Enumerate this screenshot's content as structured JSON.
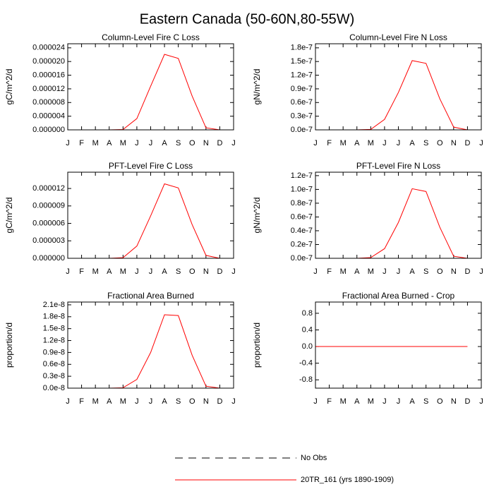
{
  "title": "Eastern Canada (50-60N,80-55W)",
  "legend": [
    {
      "label": "No Obs",
      "color": "#000000",
      "dash": true
    },
    {
      "label": "20TR_161 (yrs 1890-1909)",
      "color": "#ff0000",
      "dash": false
    }
  ],
  "chart_data": [
    {
      "type": "line",
      "title": "Column-Level Fire C Loss",
      "y_label": "gC/m^2/d",
      "color": "#ff0000",
      "categories": [
        "J",
        "F",
        "M",
        "A",
        "M",
        "J",
        "J",
        "A",
        "S",
        "O",
        "N",
        "D",
        "J"
      ],
      "values": [
        0,
        0,
        0,
        0,
        1e-07,
        3.3e-06,
        1.28e-05,
        2.21e-05,
        2.09e-05,
        9.9e-06,
        6e-07,
        0,
        null
      ],
      "ylim": [
        0,
        2.52e-05
      ],
      "yticks": [
        {
          "value": 0,
          "label": "0.000000"
        },
        {
          "value": 4e-06,
          "label": "0.000004"
        },
        {
          "value": 8e-06,
          "label": "0.000008"
        },
        {
          "value": 1.2e-05,
          "label": "0.000012"
        },
        {
          "value": 1.6e-05,
          "label": "0.000016"
        },
        {
          "value": 2e-05,
          "label": "0.000020"
        },
        {
          "value": 2.4e-05,
          "label": "0.000024"
        }
      ]
    },
    {
      "type": "line",
      "title": "Column-Level Fire N Loss",
      "y_label": "gN/m^2/d",
      "color": "#ff0000",
      "categories": [
        "J",
        "F",
        "M",
        "A",
        "M",
        "J",
        "J",
        "A",
        "S",
        "O",
        "N",
        "D",
        "J"
      ],
      "values": [
        0,
        0,
        0,
        0,
        1e-09,
        2.3e-08,
        8.2e-08,
        1.52e-07,
        1.46e-07,
        6.8e-08,
        6e-09,
        0,
        null
      ],
      "ylim": [
        0,
        1.89e-07
      ],
      "yticks": [
        {
          "value": 0,
          "label": "0.0e-7"
        },
        {
          "value": 3e-08,
          "label": "0.3e-7"
        },
        {
          "value": 6e-08,
          "label": "0.6e-7"
        },
        {
          "value": 9e-08,
          "label": "0.9e-7"
        },
        {
          "value": 1.2e-07,
          "label": "1.2e-7"
        },
        {
          "value": 1.5e-07,
          "label": "1.5e-7"
        },
        {
          "value": 1.8e-07,
          "label": "1.8e-7"
        }
      ]
    },
    {
      "type": "line",
      "title": "PFT-Level Fire C Loss",
      "y_label": "gC/m^2/d",
      "color": "#ff0000",
      "categories": [
        "J",
        "F",
        "M",
        "A",
        "M",
        "J",
        "J",
        "A",
        "S",
        "O",
        "N",
        "D",
        "J"
      ],
      "values": [
        0,
        0,
        0,
        0,
        1e-07,
        2.1e-06,
        7.3e-06,
        1.28e-05,
        1.21e-05,
        5.8e-06,
        5e-07,
        0,
        null
      ],
      "ylim": [
        0,
        1.48e-05
      ],
      "yticks": [
        {
          "value": 0,
          "label": "0.000000"
        },
        {
          "value": 3e-06,
          "label": "0.000003"
        },
        {
          "value": 6e-06,
          "label": "0.000006"
        },
        {
          "value": 9e-06,
          "label": "0.000009"
        },
        {
          "value": 1.2e-05,
          "label": "0.000012"
        }
      ]
    },
    {
      "type": "line",
      "title": "PFT-Level Fire N Loss",
      "y_label": "gN/m^2/d",
      "color": "#ff0000",
      "categories": [
        "J",
        "F",
        "M",
        "A",
        "M",
        "J",
        "J",
        "A",
        "S",
        "O",
        "N",
        "D",
        "J"
      ],
      "values": [
        0,
        0,
        0,
        0,
        1e-09,
        1.4e-08,
        5.2e-08,
        1.01e-07,
        9.7e-08,
        4.5e-08,
        3e-09,
        0,
        null
      ],
      "ylim": [
        0,
        1.25e-07
      ],
      "yticks": [
        {
          "value": 0,
          "label": "0.0e-7"
        },
        {
          "value": 2e-08,
          "label": "0.2e-7"
        },
        {
          "value": 4e-08,
          "label": "0.4e-7"
        },
        {
          "value": 6e-08,
          "label": "0.6e-7"
        },
        {
          "value": 8e-08,
          "label": "0.8e-7"
        },
        {
          "value": 1e-07,
          "label": "1.0e-7"
        },
        {
          "value": 1.2e-07,
          "label": "1.2e-7"
        }
      ]
    },
    {
      "type": "line",
      "title": "Fractional Area Burned",
      "y_label": "proportion/d",
      "color": "#ff0000",
      "categories": [
        "J",
        "F",
        "M",
        "A",
        "M",
        "J",
        "J",
        "A",
        "S",
        "O",
        "N",
        "D",
        "J"
      ],
      "values": [
        0,
        0,
        0,
        0,
        1e-10,
        2.2e-09,
        9e-09,
        1.85e-08,
        1.83e-08,
        8.3e-09,
        5e-10,
        0,
        null
      ],
      "ylim": [
        0,
        2.17e-08
      ],
      "yticks": [
        {
          "value": 0,
          "label": "0.0e-8"
        },
        {
          "value": 3e-09,
          "label": "0.3e-8"
        },
        {
          "value": 6e-09,
          "label": "0.6e-8"
        },
        {
          "value": 9e-09,
          "label": "0.9e-8"
        },
        {
          "value": 1.2e-08,
          "label": "1.2e-8"
        },
        {
          "value": 1.5e-08,
          "label": "1.5e-8"
        },
        {
          "value": 1.8e-08,
          "label": "1.8e-8"
        },
        {
          "value": 2.1e-08,
          "label": "2.1e-8"
        }
      ]
    },
    {
      "type": "line",
      "title": "Fractional Area Burned - Crop",
      "y_label": "proportion/d",
      "color": "#ff0000",
      "categories": [
        "J",
        "F",
        "M",
        "A",
        "M",
        "J",
        "J",
        "A",
        "S",
        "O",
        "N",
        "D",
        "J"
      ],
      "values": [
        0,
        0,
        0,
        0,
        0,
        0,
        0,
        0,
        0,
        0,
        0,
        0,
        null
      ],
      "ylim": [
        -1,
        1.07
      ],
      "yticks": [
        -0.8,
        -0.4,
        {
          "value": 0,
          "label": "0.0"
        },
        0.4,
        0.8
      ]
    }
  ]
}
